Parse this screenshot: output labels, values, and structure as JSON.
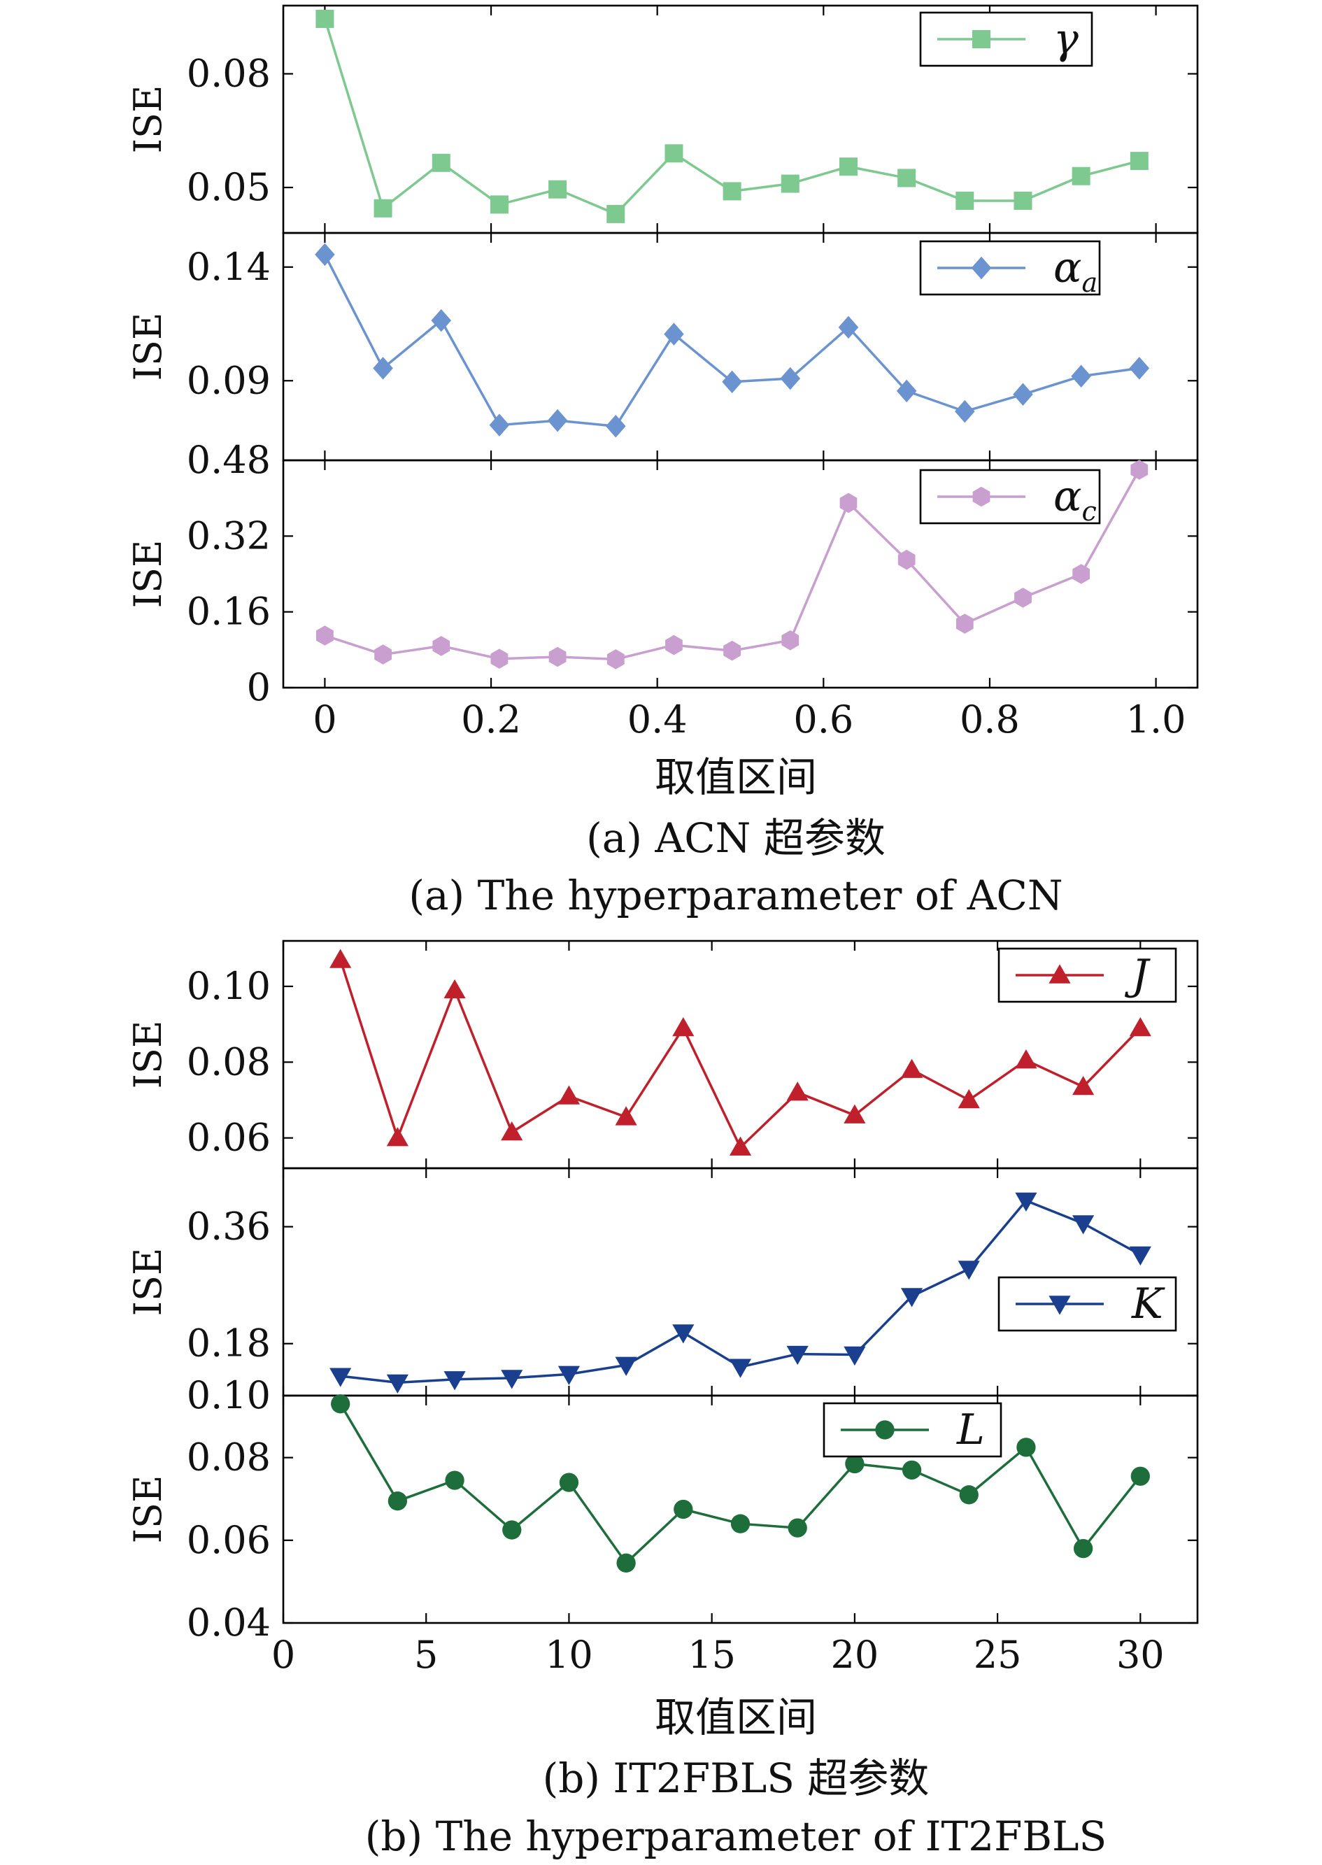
{
  "chart_data": [
    {
      "type": "line",
      "group": "a",
      "x": [
        0,
        0.07,
        0.14,
        0.21,
        0.28,
        0.35,
        0.42,
        0.49,
        0.56,
        0.63,
        0.7,
        0.77,
        0.84,
        0.91,
        0.98
      ],
      "xlim": [
        -0.05,
        1.05
      ],
      "xticks": [
        0,
        0.2,
        0.4,
        0.6,
        0.8,
        1.0
      ],
      "xtick_labels": [
        "0",
        "0.2",
        "0.4",
        "0.6",
        "0.8",
        "1.0"
      ],
      "xlabel": "取值区间",
      "caption_cn": "(a) ACN 超参数",
      "caption_en": "(a) The hyperparameter of ACN",
      "panels": [
        {
          "ylabel": "ISE",
          "ylim": [
            0.038,
            0.098
          ],
          "yticks": [
            0.05,
            0.08
          ],
          "ytick_labels": [
            "0.05",
            "0.08"
          ],
          "legend_position": "top-right",
          "series": [
            {
              "name": "γ",
              "color": "#7dc98f",
              "marker": "square",
              "values": [
                0.0945,
                0.0445,
                0.0565,
                0.0455,
                0.0495,
                0.043,
                0.059,
                0.049,
                0.051,
                0.0555,
                0.0525,
                0.0465,
                0.0465,
                0.053,
                0.057
              ]
            }
          ]
        },
        {
          "ylabel": "ISE",
          "ylim": [
            0.055,
            0.155
          ],
          "yticks": [
            0.09,
            0.14
          ],
          "ytick_labels": [
            "0.09",
            "0.14"
          ],
          "legend_position": "top-right",
          "series": [
            {
              "name": "α",
              "name_sub": "a",
              "color": "#6a93cf",
              "marker": "diamond",
              "values": [
                0.1455,
                0.0955,
                0.1165,
                0.0705,
                0.0725,
                0.07,
                0.1105,
                0.0895,
                0.091,
                0.1135,
                0.0855,
                0.0765,
                0.084,
                0.092,
                0.0955
              ]
            }
          ]
        },
        {
          "ylabel": "ISE",
          "ylim": [
            0,
            0.48
          ],
          "yticks": [
            0,
            0.16,
            0.32,
            0.48
          ],
          "ytick_labels": [
            "0",
            "0.16",
            "0.32",
            "0.48"
          ],
          "legend_position": "top-right",
          "series": [
            {
              "name": "α",
              "name_sub": "c",
              "color": "#c99fcf",
              "marker": "hexagon",
              "values": [
                0.11,
                0.07,
                0.088,
                0.061,
                0.065,
                0.06,
                0.09,
                0.078,
                0.1,
                0.39,
                0.27,
                0.135,
                0.19,
                0.24,
                0.46
              ]
            }
          ]
        }
      ]
    },
    {
      "type": "line",
      "group": "b",
      "x": [
        2,
        4,
        6,
        8,
        10,
        12,
        14,
        16,
        18,
        20,
        22,
        24,
        26,
        28,
        30
      ],
      "xlim": [
        0,
        32
      ],
      "xticks": [
        0,
        5,
        10,
        15,
        20,
        25,
        30
      ],
      "xtick_labels": [
        "0",
        "5",
        "10",
        "15",
        "20",
        "25",
        "30"
      ],
      "xlabel": "取值区间",
      "caption_cn": "(b) IT2FBLS 超参数",
      "caption_en": "(b) The hyperparameter of IT2FBLS",
      "panels": [
        {
          "ylabel": "ISE",
          "ylim": [
            0.052,
            0.112
          ],
          "yticks": [
            0.06,
            0.08,
            0.1
          ],
          "ytick_labels": [
            "0.06",
            "0.08",
            "0.10"
          ],
          "legend_position": "top-right",
          "series": [
            {
              "name": "J",
              "color": "#c0202c",
              "marker": "triangle-up",
              "values": [
                0.107,
                0.06,
                0.099,
                0.0615,
                0.071,
                0.0655,
                0.089,
                0.0575,
                0.072,
                0.066,
                0.078,
                0.07,
                0.0805,
                0.0735,
                0.089
              ]
            }
          ]
        },
        {
          "ylabel": "ISE",
          "ylim": [
            0.1,
            0.45
          ],
          "yticks": [
            0.1,
            0.18,
            0.36
          ],
          "ytick_labels": [
            "0.10",
            "0.18",
            "0.36"
          ],
          "yscale_note": "tick positions as printed: 0.10 at bottom, 0.18 and 0.36 above",
          "legend_position": "center-right",
          "series": [
            {
              "name": "K",
              "color": "#1a3f8f",
              "marker": "triangle-down",
              "values": [
                0.13,
                0.12,
                0.125,
                0.127,
                0.133,
                0.147,
                0.197,
                0.144,
                0.164,
                0.163,
                0.253,
                0.295,
                0.4,
                0.365,
                0.317
              ]
            }
          ]
        },
        {
          "ylabel": "ISE",
          "ylim": [
            0.04,
            0.095
          ],
          "yticks": [
            0.04,
            0.06,
            0.08
          ],
          "ytick_labels": [
            "0.04",
            "0.06",
            "0.08"
          ],
          "legend_position": "top-center",
          "series": [
            {
              "name": "L",
              "color": "#1e6e3c",
              "marker": "circle",
              "values": [
                0.093,
                0.0695,
                0.0745,
                0.0625,
                0.074,
                0.0545,
                0.0675,
                0.064,
                0.063,
                0.0785,
                0.077,
                0.071,
                0.0825,
                0.058,
                0.0755
              ]
            }
          ]
        }
      ]
    }
  ]
}
